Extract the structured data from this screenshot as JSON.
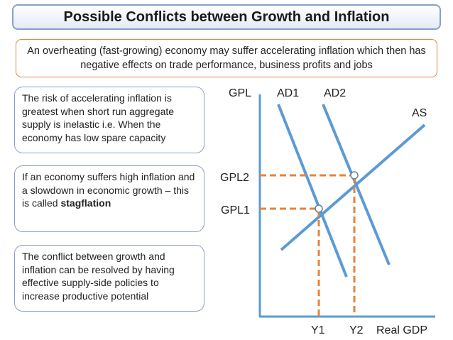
{
  "title": "Possible Conflicts between Growth and Inflation",
  "subtitle": "An overheating (fast-growing) economy may suffer accelerating inflation which then has negative effects on trade performance, business profits and jobs",
  "notes": [
    {
      "text": "The risk of accelerating inflation is greatest when short run aggregate supply is inelastic i.e. When the economy has low spare capacity"
    },
    {
      "text": "If an economy suffers high inflation and a slowdown in economic growth – this is called ",
      "bold": "stagflation"
    },
    {
      "text": "The conflict between growth and inflation can be resolved by having effective supply-side policies to increase productive potential"
    }
  ],
  "diagram": {
    "y_axis_label": "GPL",
    "x_axis_label": "Real GDP",
    "curves": [
      "AD1",
      "AD2",
      "AS"
    ],
    "price_levels": [
      "GPL2",
      "GPL1"
    ],
    "output_levels": [
      "Y1",
      "Y2"
    ],
    "colors": {
      "axis": "#5b9bd5",
      "curves": "#5b9bd5",
      "guides": "#e8823a",
      "title_border": "#8aa0c8",
      "subtitle_border": "#e8823a",
      "point_fill": "#ffffff"
    }
  }
}
